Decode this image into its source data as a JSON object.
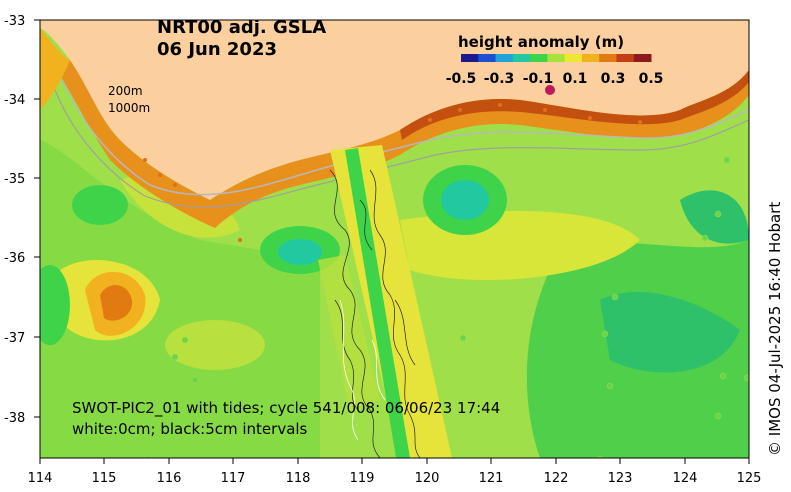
{
  "title": {
    "line1": "NRT00 adj. GSLA",
    "line2": "06 Jun 2023"
  },
  "colorbar": {
    "title": "height anomaly (m)",
    "ticks": [
      "-0.5",
      "-0.3",
      "-0.1",
      "0.1",
      "0.3",
      "0.5"
    ],
    "colors": [
      "#1a1a8c",
      "#1e4fd0",
      "#1fa3d8",
      "#22c9a0",
      "#3fd34a",
      "#a8e23a",
      "#ece832",
      "#f2b21f",
      "#e27a12",
      "#c43f16",
      "#8c1c1c"
    ]
  },
  "isobaths": {
    "label1": "200m",
    "label2": "1000m"
  },
  "swath": {
    "line1": "SWOT-PIC2_01 with tides; cycle 541/008: 06/06/23 17:44",
    "line2": "white:0cm; black:5cm intervals"
  },
  "credit": "© IMOS 04-Jul-2025 16:40 Hobart",
  "axes": {
    "x_ticks": [
      "114",
      "115",
      "116",
      "117",
      "118",
      "119",
      "120",
      "121",
      "122",
      "123",
      "124",
      "125"
    ],
    "y_ticks": [
      "-33",
      "-34",
      "-35",
      "-36",
      "-37",
      "-38"
    ]
  },
  "colors": {
    "land": "#fbcf9e",
    "sea_base": "#9fe04a",
    "coast_orange": "#e88a1a"
  }
}
